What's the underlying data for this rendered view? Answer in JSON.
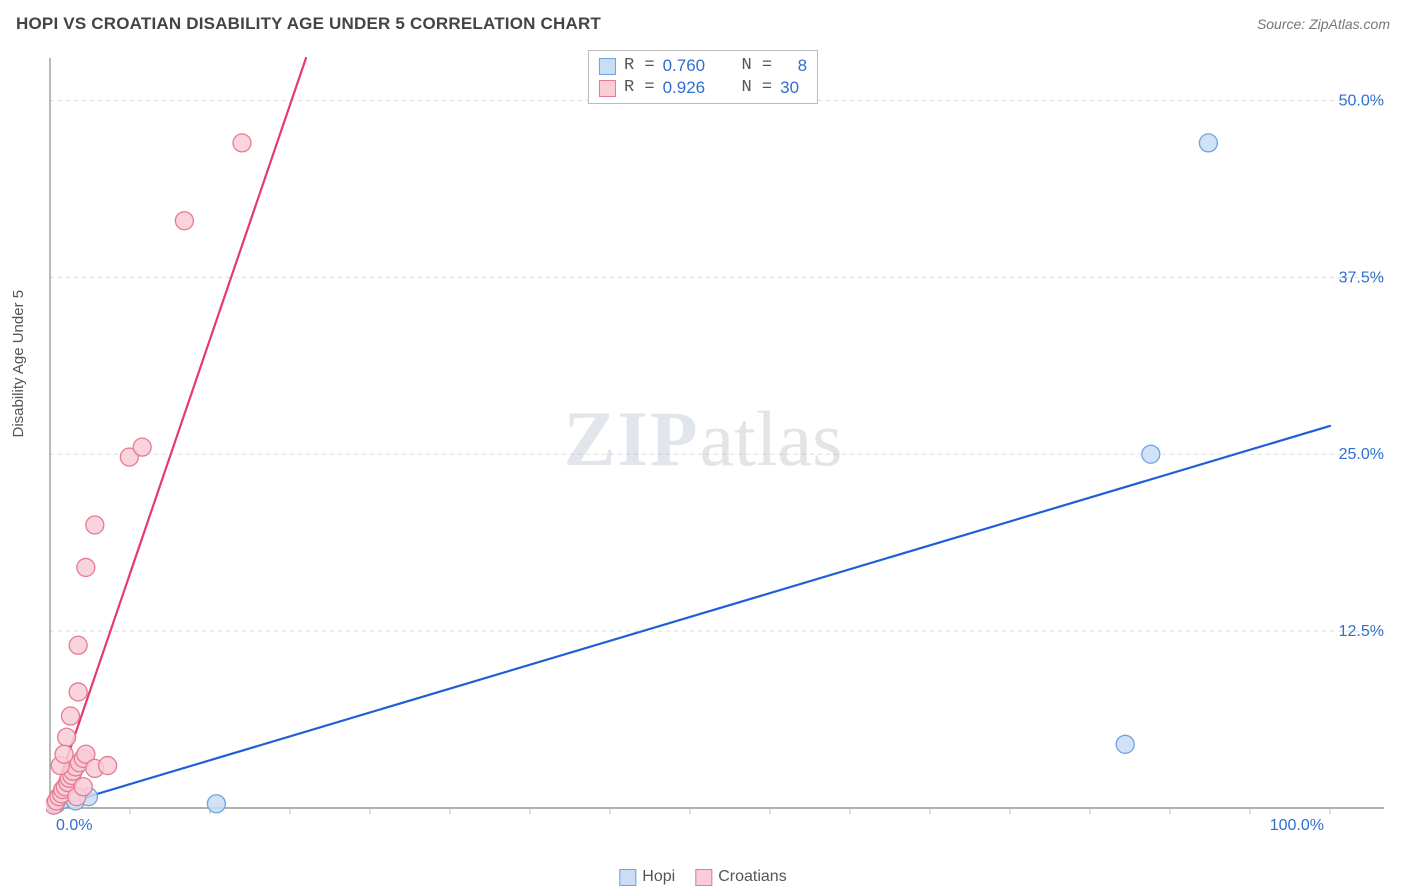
{
  "title": "HOPI VS CROATIAN DISABILITY AGE UNDER 5 CORRELATION CHART",
  "source_label": "Source: ZipAtlas.com",
  "ylabel": "Disability Age Under 5",
  "watermark_a": "ZIP",
  "watermark_b": "atlas",
  "chart": {
    "type": "scatter",
    "background_color": "#ffffff",
    "grid_color": "#dddddd",
    "axis_color": "#999999",
    "tick_color": "#bbbbbb",
    "label_color": "#2f6fd0",
    "xlim": [
      0,
      100
    ],
    "ylim": [
      0,
      53
    ],
    "x_ticks_minor_step": 6.25,
    "x_ticks_labels": [
      {
        "v": 0,
        "label": "0.0%"
      },
      {
        "v": 100,
        "label": "100.0%"
      }
    ],
    "y_gridlines": [
      12.5,
      25.0,
      37.5,
      50.0
    ],
    "y_ticks_labels": [
      {
        "v": 12.5,
        "label": "12.5%"
      },
      {
        "v": 25.0,
        "label": "25.0%"
      },
      {
        "v": 37.5,
        "label": "37.5%"
      },
      {
        "v": 50.0,
        "label": "50.0%"
      }
    ],
    "marker_radius": 9,
    "marker_stroke_width": 1.3,
    "line_width": 2.2,
    "series": [
      {
        "name": "Hopi",
        "key": "hopi",
        "fill": "#c9ddf5",
        "stroke": "#6fa3e0",
        "line_color": "#1f5fd8",
        "R": "0.760",
        "N": "8",
        "trend": {
          "x1": 0,
          "y1": 0,
          "x2": 100,
          "y2": 27
        },
        "points": [
          {
            "x": 0.5,
            "y": 0.3
          },
          {
            "x": 1,
            "y": 0.6
          },
          {
            "x": 2,
            "y": 0.5
          },
          {
            "x": 3,
            "y": 0.8
          },
          {
            "x": 13,
            "y": 0.3
          },
          {
            "x": 86,
            "y": 25.0
          },
          {
            "x": 84,
            "y": 4.5
          },
          {
            "x": 90.5,
            "y": 47.0
          }
        ]
      },
      {
        "name": "Croatians",
        "key": "croatians",
        "fill": "#f8cdd7",
        "stroke": "#e57a93",
        "line_color": "#e63b6a",
        "R": "0.926",
        "N": "30",
        "trend": {
          "x1": 0,
          "y1": 0,
          "x2": 20,
          "y2": 53
        },
        "points": [
          {
            "x": 0.3,
            "y": 0.2
          },
          {
            "x": 0.5,
            "y": 0.5
          },
          {
            "x": 0.7,
            "y": 0.8
          },
          {
            "x": 0.9,
            "y": 1.0
          },
          {
            "x": 1.0,
            "y": 1.3
          },
          {
            "x": 1.2,
            "y": 1.5
          },
          {
            "x": 1.4,
            "y": 1.8
          },
          {
            "x": 1.5,
            "y": 2.1
          },
          {
            "x": 1.7,
            "y": 2.3
          },
          {
            "x": 1.8,
            "y": 2.6
          },
          {
            "x": 2.0,
            "y": 2.9
          },
          {
            "x": 2.1,
            "y": 0.8
          },
          {
            "x": 2.3,
            "y": 3.2
          },
          {
            "x": 2.6,
            "y": 1.5
          },
          {
            "x": 2.6,
            "y": 3.5
          },
          {
            "x": 2.8,
            "y": 3.8
          },
          {
            "x": 3.5,
            "y": 2.8
          },
          {
            "x": 4.5,
            "y": 3.0
          },
          {
            "x": 1.3,
            "y": 5.0
          },
          {
            "x": 1.6,
            "y": 6.5
          },
          {
            "x": 2.2,
            "y": 8.2
          },
          {
            "x": 2.2,
            "y": 11.5
          },
          {
            "x": 2.8,
            "y": 17.0
          },
          {
            "x": 3.5,
            "y": 20.0
          },
          {
            "x": 6.2,
            "y": 24.8
          },
          {
            "x": 7.2,
            "y": 25.5
          },
          {
            "x": 10.5,
            "y": 41.5
          },
          {
            "x": 15.0,
            "y": 47.0
          },
          {
            "x": 0.8,
            "y": 3.0
          },
          {
            "x": 1.1,
            "y": 3.8
          }
        ]
      }
    ]
  },
  "legend_top": {
    "r_label": "R =",
    "n_label": "N ="
  },
  "legend_bottom": [
    {
      "key": "hopi",
      "label": "Hopi"
    },
    {
      "key": "croatians",
      "label": "Croatians"
    }
  ]
}
